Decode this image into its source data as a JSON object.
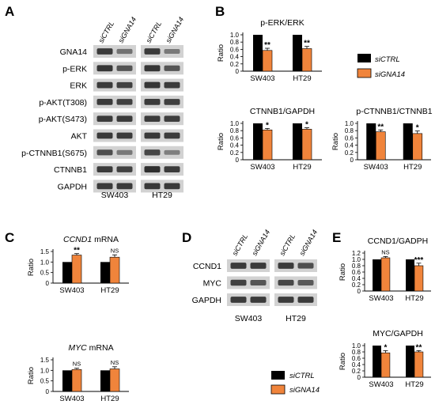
{
  "colors": {
    "siCTRL": "#000000",
    "siGNA14": "#f0843b",
    "blot_bg": "#d2d2d2",
    "band": "#2f2f2f"
  },
  "panels": {
    "A": {
      "label": "A",
      "lanes": [
        "siCTRL",
        "siGNA14",
        "siCTRL",
        "siGNA14"
      ],
      "rows": [
        "GNA14",
        "p-ERK",
        "ERK",
        "p-AKT(T308)",
        "p-AKT(S473)",
        "AKT",
        "p-CTNNB1(S675)",
        "CTNNB1",
        "GAPDH"
      ],
      "band_intensity": [
        [
          0.9,
          0.45,
          0.9,
          0.4
        ],
        [
          0.95,
          0.7,
          0.95,
          0.7
        ],
        [
          0.9,
          0.85,
          0.95,
          0.9
        ],
        [
          0.9,
          0.85,
          0.9,
          0.88
        ],
        [
          0.9,
          0.9,
          0.9,
          0.88
        ],
        [
          0.92,
          0.9,
          0.92,
          0.9
        ],
        [
          0.75,
          0.4,
          0.8,
          0.35
        ],
        [
          0.9,
          0.85,
          1.0,
          0.9
        ],
        [
          0.9,
          0.9,
          0.92,
          0.92
        ]
      ],
      "cell_lines": [
        "SW403",
        "HT29"
      ]
    },
    "D": {
      "label": "D",
      "lanes": [
        "siCTRL",
        "siGNA14",
        "siCTRL",
        "siGNA14"
      ],
      "rows": [
        "CCND1",
        "MYC",
        "GAPDH"
      ],
      "band_intensity": [
        [
          0.9,
          0.9,
          0.9,
          0.75
        ],
        [
          0.85,
          0.7,
          0.8,
          0.65
        ],
        [
          0.9,
          0.9,
          0.9,
          0.9
        ]
      ],
      "cell_lines": [
        "SW403",
        "HT29"
      ]
    }
  },
  "legends": [
    {
      "items": [
        "siCTRL",
        "siGNA14"
      ]
    },
    {
      "items": [
        "siCTRL",
        "siGNA14"
      ]
    }
  ],
  "chart_data": [
    {
      "panel": "B",
      "type": "bar",
      "title": "p-ERK/ERK",
      "ylabel": "Ratio",
      "ylim": [
        0,
        1.0
      ],
      "yticks": [
        "0",
        "0.2",
        "0.4",
        "0.6",
        "0.8",
        "1.0"
      ],
      "categories": [
        "SW403",
        "HT29"
      ],
      "series": [
        {
          "name": "siCTRL",
          "values": [
            1.0,
            1.0
          ],
          "errors": [
            0,
            0
          ]
        },
        {
          "name": "siGNA14",
          "values": [
            0.57,
            0.62
          ],
          "errors": [
            0.06,
            0.06
          ]
        }
      ],
      "significance": [
        "**",
        "**"
      ]
    },
    {
      "panel": "B",
      "type": "bar",
      "title": "CTNNB1/GAPDH",
      "ylabel": "Ratio",
      "ylim": [
        0,
        1.0
      ],
      "yticks": [
        "0",
        "0.2",
        "0.4",
        "0.6",
        "0.8",
        "1.0"
      ],
      "categories": [
        "SW403",
        "HT29"
      ],
      "series": [
        {
          "name": "siCTRL",
          "values": [
            1.0,
            1.0
          ],
          "errors": [
            0,
            0
          ]
        },
        {
          "name": "siGNA14",
          "values": [
            0.82,
            0.84
          ],
          "errors": [
            0.04,
            0.04
          ]
        }
      ],
      "significance": [
        "*",
        "*"
      ]
    },
    {
      "panel": "B",
      "type": "bar",
      "title": "p-CTNNB1/CTNNB1",
      "ylabel": "Ratio",
      "ylim": [
        0,
        1.0
      ],
      "yticks": [
        "0",
        "0.2",
        "0.4",
        "0.6",
        "0.8",
        "1.0"
      ],
      "categories": [
        "SW403",
        "HT29"
      ],
      "series": [
        {
          "name": "siCTRL",
          "values": [
            1.0,
            1.0
          ],
          "errors": [
            0,
            0
          ]
        },
        {
          "name": "siGNA14",
          "values": [
            0.77,
            0.72
          ],
          "errors": [
            0.05,
            0.07
          ]
        }
      ],
      "significance": [
        "**",
        "*"
      ]
    },
    {
      "panel": "C",
      "type": "bar",
      "title": "CCND1 mRNA",
      "ylabel": "Ratio",
      "ylim": [
        0,
        1.5
      ],
      "yticks": [
        "0",
        "0.5",
        "1.0",
        "1.5"
      ],
      "categories": [
        "SW403",
        "HT29"
      ],
      "series": [
        {
          "name": "siCTRL",
          "values": [
            1.0,
            1.0
          ],
          "errors": [
            0,
            0
          ]
        },
        {
          "name": "siGNA14",
          "values": [
            1.33,
            1.23
          ],
          "errors": [
            0.07,
            0.11
          ]
        }
      ],
      "significance": [
        "**",
        "NS"
      ]
    },
    {
      "panel": "C",
      "type": "bar",
      "title": "MYC mRNA",
      "ylabel": "Ratio",
      "ylim": [
        0,
        1.5
      ],
      "yticks": [
        "0",
        "0.5",
        "1.0",
        "1.5"
      ],
      "categories": [
        "SW403",
        "HT29"
      ],
      "series": [
        {
          "name": "siCTRL",
          "values": [
            1.0,
            1.0
          ],
          "errors": [
            0,
            0
          ]
        },
        {
          "name": "siGNA14",
          "values": [
            1.04,
            1.07
          ],
          "errors": [
            0.06,
            0.1
          ]
        }
      ],
      "significance": [
        "NS",
        "NS"
      ]
    },
    {
      "panel": "E",
      "type": "bar",
      "title": "CCND1/GADPH",
      "ylabel": "Ratio",
      "ylim": [
        0,
        1.2
      ],
      "yticks": [
        "0",
        "0.2",
        "0.4",
        "0.6",
        "0.8",
        "1.0",
        "1.2"
      ],
      "categories": [
        "SW403",
        "HT29"
      ],
      "series": [
        {
          "name": "siCTRL",
          "values": [
            1.0,
            1.0
          ],
          "errors": [
            0,
            0
          ]
        },
        {
          "name": "siGNA14",
          "values": [
            1.05,
            0.8
          ],
          "errors": [
            0.04,
            0.08
          ]
        }
      ],
      "significance": [
        "NS",
        "***"
      ]
    },
    {
      "panel": "E",
      "type": "bar",
      "title": "MYC/GAPDH",
      "ylabel": "Ratio",
      "ylim": [
        0,
        1.0
      ],
      "yticks": [
        "0",
        "0.2",
        "0.4",
        "0.6",
        "0.8",
        "1.0"
      ],
      "categories": [
        "SW403",
        "HT29"
      ],
      "series": [
        {
          "name": "siCTRL",
          "values": [
            1.0,
            1.0
          ],
          "errors": [
            0,
            0
          ]
        },
        {
          "name": "siGNA14",
          "values": [
            0.77,
            0.8
          ],
          "errors": [
            0.07,
            0.04
          ]
        }
      ],
      "significance": [
        "*",
        "**"
      ]
    }
  ]
}
